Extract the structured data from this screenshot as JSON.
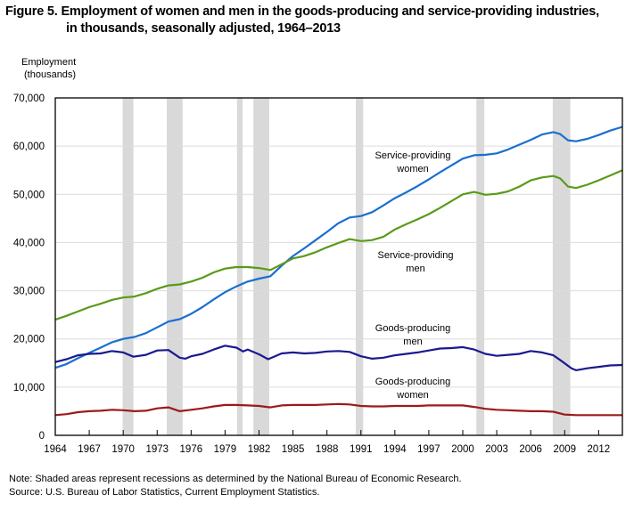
{
  "chart_data": {
    "type": "line",
    "title": "Figure 5. Employment of women and men in the goods-producing and service-providing industries,",
    "title_line2": "in thousands, seasonally adjusted, 1964–2013",
    "ylabel_line1": "Employment",
    "ylabel_line2": "(thousands)",
    "xlabel": "",
    "ylim": [
      0,
      70000
    ],
    "xlim": [
      1964,
      2014.1
    ],
    "yticks": [
      0,
      10000,
      20000,
      30000,
      40000,
      50000,
      60000,
      70000
    ],
    "ytick_labels": [
      "0",
      "10,000",
      "20,000",
      "30,000",
      "40,000",
      "50,000",
      "60,000",
      "70,000"
    ],
    "xticks": [
      1964,
      1967,
      1970,
      1973,
      1976,
      1979,
      1982,
      1985,
      1988,
      1991,
      1994,
      1997,
      2000,
      2003,
      2006,
      2009,
      2012
    ],
    "xtick_labels": [
      "1964",
      "1967",
      "1970",
      "1973",
      "1976",
      "1979",
      "1982",
      "1985",
      "1988",
      "1991",
      "1994",
      "1997",
      "2000",
      "2003",
      "2006",
      "2009",
      "2012"
    ],
    "grid": true,
    "recessions": [
      [
        1969.95,
        1970.9
      ],
      [
        1973.85,
        1975.25
      ],
      [
        1980.05,
        1980.55
      ],
      [
        1981.5,
        1982.9
      ],
      [
        1990.55,
        1991.2
      ],
      [
        2001.2,
        2001.9
      ],
      [
        2007.95,
        2009.5
      ]
    ],
    "series": [
      {
        "name": "Service-providing women",
        "color": "#1a6fcf",
        "x": [
          1964,
          1965,
          1966,
          1967,
          1968,
          1969,
          1970,
          1971,
          1972,
          1973,
          1974,
          1975,
          1976,
          1977,
          1978,
          1979,
          1980,
          1981,
          1982,
          1983,
          1984,
          1985,
          1986,
          1987,
          1988,
          1989,
          1990,
          1991,
          1992,
          1993,
          1994,
          1995,
          1996,
          1997,
          1998,
          1999,
          2000,
          2001,
          2002,
          2003,
          2004,
          2005,
          2006,
          2007,
          2008,
          2008.6,
          2009.3,
          2010,
          2011,
          2012,
          2013,
          2014.1
        ],
        "values": [
          14000,
          14800,
          16000,
          17100,
          18200,
          19300,
          20000,
          20400,
          21200,
          22400,
          23600,
          24100,
          25200,
          26600,
          28200,
          29700,
          30900,
          31900,
          32500,
          33000,
          35200,
          37200,
          38800,
          40500,
          42200,
          44000,
          45200,
          45500,
          46300,
          47700,
          49200,
          50400,
          51700,
          53100,
          54600,
          56000,
          57400,
          58100,
          58200,
          58500,
          59300,
          60300,
          61300,
          62400,
          62900,
          62500,
          61200,
          61000,
          61500,
          62300,
          63200,
          64000
        ]
      },
      {
        "name": "Service-providing men",
        "color": "#5a9a1a",
        "x": [
          1964,
          1965,
          1966,
          1967,
          1968,
          1969,
          1970,
          1971,
          1972,
          1973,
          1974,
          1975,
          1976,
          1977,
          1978,
          1979,
          1980,
          1981,
          1982,
          1983,
          1984,
          1985,
          1986,
          1987,
          1988,
          1989,
          1990,
          1991,
          1992,
          1993,
          1994,
          1995,
          1996,
          1997,
          1998,
          1999,
          2000,
          2001,
          2002,
          2003,
          2004,
          2005,
          2006,
          2007,
          2008,
          2008.6,
          2009.3,
          2010,
          2011,
          2012,
          2013,
          2014.1
        ],
        "values": [
          24000,
          24800,
          25700,
          26600,
          27300,
          28100,
          28600,
          28800,
          29500,
          30400,
          31100,
          31300,
          31900,
          32700,
          33800,
          34600,
          34900,
          34900,
          34700,
          34300,
          35500,
          36700,
          37200,
          38000,
          39000,
          39900,
          40700,
          40300,
          40500,
          41200,
          42700,
          43800,
          44800,
          45900,
          47200,
          48600,
          50000,
          50500,
          49900,
          50100,
          50600,
          51600,
          52900,
          53500,
          53800,
          53300,
          51600,
          51300,
          52000,
          52900,
          53900,
          55000
        ]
      },
      {
        "name": "Goods-producing men",
        "color": "#1a1a8f",
        "x": [
          1964,
          1965,
          1966,
          1967,
          1968,
          1969,
          1970,
          1970.9,
          1972,
          1973,
          1974,
          1975,
          1975.5,
          1976,
          1977,
          1978,
          1979,
          1980,
          1980.6,
          1981,
          1982,
          1982.8,
          1984,
          1985,
          1986,
          1987,
          1988,
          1989,
          1990,
          1991,
          1992,
          1993,
          1994,
          1995,
          1996,
          1997,
          1998,
          1999,
          2000,
          2001,
          2002,
          2003,
          2004,
          2005,
          2006,
          2007,
          2008,
          2008.8,
          2009.6,
          2010,
          2011,
          2012,
          2013,
          2014.1
        ],
        "values": [
          15200,
          15800,
          16600,
          16900,
          17000,
          17500,
          17200,
          16300,
          16700,
          17600,
          17700,
          16100,
          15900,
          16400,
          16900,
          17800,
          18600,
          18200,
          17400,
          17800,
          16800,
          15800,
          17000,
          17200,
          17000,
          17100,
          17400,
          17500,
          17300,
          16400,
          15900,
          16100,
          16600,
          16900,
          17200,
          17600,
          18000,
          18100,
          18300,
          17800,
          16900,
          16500,
          16700,
          16900,
          17500,
          17200,
          16600,
          15300,
          13900,
          13500,
          13900,
          14200,
          14500,
          14600
        ]
      },
      {
        "name": "Goods-producing women",
        "color": "#9c1a1a",
        "x": [
          1964,
          1965,
          1966,
          1967,
          1968,
          1969,
          1970,
          1971,
          1972,
          1973,
          1974,
          1975,
          1976,
          1977,
          1978,
          1979,
          1980,
          1981,
          1982,
          1983,
          1984,
          1985,
          1986,
          1987,
          1988,
          1989,
          1990,
          1991,
          1992,
          1993,
          1994,
          1995,
          1996,
          1997,
          1998,
          1999,
          2000,
          2001,
          2002,
          2003,
          2004,
          2005,
          2006,
          2007,
          2008,
          2009,
          2010,
          2011,
          2012,
          2013,
          2014.1
        ],
        "values": [
          4200,
          4400,
          4800,
          5000,
          5100,
          5300,
          5200,
          5000,
          5100,
          5600,
          5800,
          5000,
          5300,
          5600,
          6000,
          6300,
          6300,
          6200,
          6100,
          5800,
          6200,
          6300,
          6300,
          6300,
          6400,
          6500,
          6400,
          6100,
          6000,
          6000,
          6100,
          6100,
          6100,
          6200,
          6200,
          6200,
          6200,
          5900,
          5500,
          5300,
          5200,
          5100,
          5000,
          5000,
          4900,
          4300,
          4200,
          4200,
          4200,
          4200,
          4200
        ]
      }
    ],
    "annotations": [
      {
        "series": "Service-providing women",
        "line1": "Service-providing",
        "line2": "women"
      },
      {
        "series": "Service-providing men",
        "line1": "Service-providing",
        "line2": "men"
      },
      {
        "series": "Goods-producing men",
        "line1": "Goods-producing",
        "line2": "men"
      },
      {
        "series": "Goods-producing women",
        "line1": "Goods-producing",
        "line2": "women"
      }
    ]
  },
  "notes": {
    "note": "Note: Shaded areas represent recessions as determined by the National Bureau of Economic Research.",
    "source": "Source: U.S. Bureau of Labor Statistics, Current Employment Statistics."
  }
}
